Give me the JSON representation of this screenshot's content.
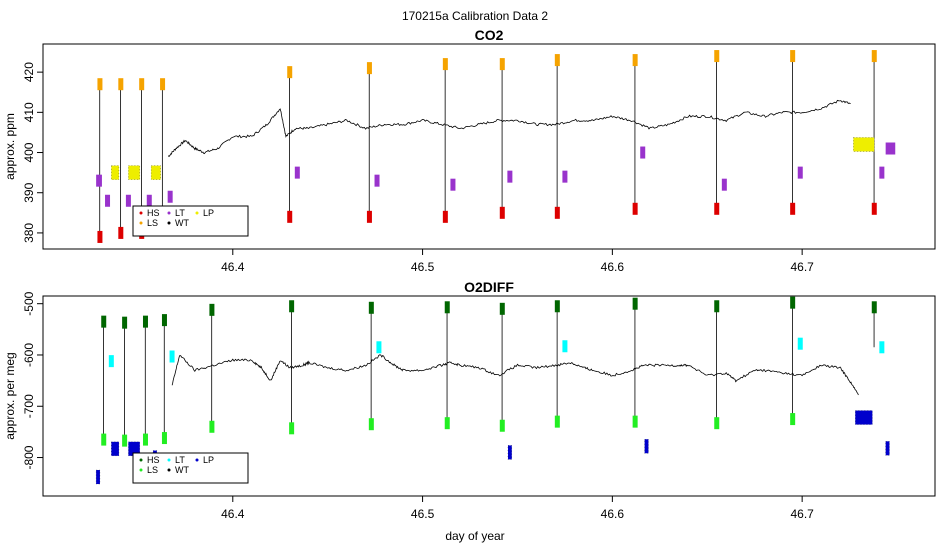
{
  "figure": {
    "title": "170215a   Calibration Data 2",
    "xlabel": "day of year"
  },
  "colors": {
    "HS": "#dd0000",
    "LS": "#f5a300",
    "LT": "#9933cc",
    "WT": "#000000",
    "LP": "#eeee00",
    "HS2": "#006600",
    "LS2": "#22ee22",
    "LT2": "#00ffff",
    "WT2": "#000000",
    "LP2": "#0000cc",
    "trace": "#000000"
  },
  "chart_data": [
    {
      "type": "line",
      "title": "CO2",
      "ylabel": "approx. ppm",
      "xlim": [
        46.3,
        46.77
      ],
      "ylim": [
        376,
        427
      ],
      "x_ticks": [
        "46.4",
        "46.5",
        "46.6",
        "46.7"
      ],
      "x_tick_values": [
        46.4,
        46.5,
        46.6,
        46.7
      ],
      "y_ticks": [
        "380",
        "390",
        "400",
        "410",
        "420"
      ],
      "y_tick_values": [
        380,
        390,
        400,
        410,
        420
      ],
      "legend": {
        "position": "bottom-left",
        "entries": [
          "HS",
          "LT",
          "LP",
          "LS",
          "WT"
        ]
      },
      "trace": [
        [
          46.366,
          399
        ],
        [
          46.37,
          401
        ],
        [
          46.375,
          403
        ],
        [
          46.38,
          401
        ],
        [
          46.385,
          400
        ],
        [
          46.392,
          401
        ],
        [
          46.4,
          404
        ],
        [
          46.41,
          404
        ],
        [
          46.418,
          407
        ],
        [
          46.425,
          411
        ],
        [
          46.428,
          404
        ],
        [
          46.433,
          406
        ],
        [
          46.44,
          406
        ],
        [
          46.45,
          407
        ],
        [
          46.46,
          408
        ],
        [
          46.47,
          406
        ],
        [
          46.48,
          407
        ],
        [
          46.49,
          407
        ],
        [
          46.5,
          408
        ],
        [
          46.51,
          407
        ],
        [
          46.52,
          406
        ],
        [
          46.53,
          407
        ],
        [
          46.54,
          408
        ],
        [
          46.55,
          408
        ],
        [
          46.56,
          407
        ],
        [
          46.57,
          407
        ],
        [
          46.58,
          408
        ],
        [
          46.59,
          408
        ],
        [
          46.6,
          409
        ],
        [
          46.61,
          408
        ],
        [
          46.62,
          406
        ],
        [
          46.63,
          407
        ],
        [
          46.64,
          409
        ],
        [
          46.65,
          409
        ],
        [
          46.66,
          408
        ],
        [
          46.67,
          410
        ],
        [
          46.68,
          409
        ],
        [
          46.69,
          410
        ],
        [
          46.7,
          410
        ],
        [
          46.71,
          411
        ],
        [
          46.72,
          413
        ],
        [
          46.726,
          412
        ]
      ],
      "cal_cycles": [
        {
          "x": 46.332,
          "HS": 379,
          "LS": 417,
          "LT": 388
        },
        {
          "x": 46.343,
          "HS": 380,
          "LS": 417,
          "LT": 388
        },
        {
          "x": 46.354,
          "HS": 380,
          "LS": 417,
          "LT": 388
        },
        {
          "x": 46.365,
          "HS": 381,
          "LS": 417,
          "LT": 389
        },
        {
          "x": 46.432,
          "HS": 384,
          "LS": 420,
          "LT": 395
        },
        {
          "x": 46.474,
          "HS": 384,
          "LS": 421,
          "LT": 393
        },
        {
          "x": 46.514,
          "HS": 384,
          "LS": 422,
          "LT": 392
        },
        {
          "x": 46.544,
          "HS": 385,
          "LS": 422,
          "LT": 394
        },
        {
          "x": 46.573,
          "HS": 385,
          "LS": 423,
          "LT": 394
        },
        {
          "x": 46.614,
          "HS": 386,
          "LS": 423,
          "LT": 400
        },
        {
          "x": 46.657,
          "HS": 386,
          "LS": 424,
          "LT": 392
        },
        {
          "x": 46.697,
          "HS": 386,
          "LS": 424,
          "LT": 395
        },
        {
          "x": 46.74,
          "HS": 386,
          "LS": 424,
          "LT": 395
        }
      ],
      "start_segment": [
        46.328,
        46.33,
        393
      ],
      "end_segment": [
        46.744,
        46.748,
        401
      ],
      "lp_segments": [
        {
          "x0": 46.336,
          "x1": 46.34,
          "y": 395
        },
        {
          "x0": 46.345,
          "x1": 46.351,
          "y": 395
        },
        {
          "x0": 46.357,
          "x1": 46.362,
          "y": 395
        },
        {
          "x0": 46.727,
          "x1": 46.738,
          "y": 402
        }
      ]
    },
    {
      "type": "line",
      "title": "O2DIFF",
      "ylabel": "approx. per meg",
      "xlim": [
        46.3,
        46.77
      ],
      "ylim": [
        -875,
        -485
      ],
      "x_ticks": [
        "46.4",
        "46.5",
        "46.6",
        "46.7"
      ],
      "x_tick_values": [
        46.4,
        46.5,
        46.6,
        46.7
      ],
      "y_ticks": [
        "-800",
        "-700",
        "-600",
        "-500"
      ],
      "y_tick_values": [
        -800,
        -700,
        -600,
        -500
      ],
      "legend": {
        "position": "bottom-left",
        "entries": [
          "HS",
          "LT",
          "LP",
          "LS",
          "WT"
        ]
      },
      "trace": [
        [
          46.368,
          -660
        ],
        [
          46.372,
          -600
        ],
        [
          46.38,
          -630
        ],
        [
          46.39,
          -620
        ],
        [
          46.4,
          -610
        ],
        [
          46.41,
          -610
        ],
        [
          46.415,
          -625
        ],
        [
          46.42,
          -650
        ],
        [
          46.425,
          -610
        ],
        [
          46.43,
          -625
        ],
        [
          46.437,
          -620
        ],
        [
          46.44,
          -615
        ],
        [
          46.45,
          -625
        ],
        [
          46.46,
          -630
        ],
        [
          46.47,
          -620
        ],
        [
          46.478,
          -600
        ],
        [
          46.485,
          -620
        ],
        [
          46.49,
          -630
        ],
        [
          46.5,
          -630
        ],
        [
          46.51,
          -620
        ],
        [
          46.515,
          -615
        ],
        [
          46.52,
          -620
        ],
        [
          46.53,
          -625
        ],
        [
          46.54,
          -640
        ],
        [
          46.55,
          -620
        ],
        [
          46.56,
          -625
        ],
        [
          46.57,
          -620
        ],
        [
          46.578,
          -615
        ],
        [
          46.585,
          -625
        ],
        [
          46.59,
          -630
        ],
        [
          46.6,
          -640
        ],
        [
          46.61,
          -630
        ],
        [
          46.617,
          -620
        ],
        [
          46.625,
          -620
        ],
        [
          46.635,
          -620
        ],
        [
          46.64,
          -620
        ],
        [
          46.65,
          -640
        ],
        [
          46.66,
          -635
        ],
        [
          46.665,
          -650
        ],
        [
          46.675,
          -630
        ],
        [
          46.68,
          -630
        ],
        [
          46.69,
          -635
        ],
        [
          46.7,
          -640
        ],
        [
          46.71,
          -620
        ],
        [
          46.72,
          -625
        ],
        [
          46.725,
          -650
        ],
        [
          46.73,
          -680
        ]
      ],
      "cal_cycles": [
        {
          "x": 46.334,
          "HS": -535,
          "LS": -765,
          "LT": -612
        },
        {
          "x": 46.345,
          "HS": -537,
          "LS": -767,
          "LT": null
        },
        {
          "x": 46.356,
          "HS": -535,
          "LS": -765,
          "LT": null
        },
        {
          "x": 46.366,
          "HS": -532,
          "LS": -762,
          "LT": -603
        },
        {
          "x": 46.391,
          "HS": -512,
          "LS": -740,
          "LT": null
        },
        {
          "x": 46.433,
          "HS": -505,
          "LS": -743,
          "LT": null
        },
        {
          "x": 46.475,
          "HS": -508,
          "LS": -735,
          "LT": -585
        },
        {
          "x": 46.515,
          "HS": -507,
          "LS": -733,
          "LT": null
        },
        {
          "x": 46.544,
          "HS": -510,
          "LS": -738,
          "LT": null
        },
        {
          "x": 46.573,
          "HS": -505,
          "LS": -730,
          "LT": -583
        },
        {
          "x": 46.614,
          "HS": -500,
          "LS": -730,
          "LT": null
        },
        {
          "x": 46.657,
          "HS": -505,
          "LS": -733,
          "LT": null
        },
        {
          "x": 46.697,
          "HS": -498,
          "LS": -725,
          "LT": -578
        },
        {
          "x": 46.74,
          "HS": -507,
          "LS": null,
          "LT": -585
        }
      ],
      "lp_segments": [
        {
          "x0": 46.328,
          "x1": 46.33,
          "y": -838
        },
        {
          "x0": 46.336,
          "x1": 46.34,
          "y": -783
        },
        {
          "x0": 46.345,
          "x1": 46.351,
          "y": -783
        },
        {
          "x0": 46.358,
          "x1": 46.36,
          "y": -800
        },
        {
          "x0": 46.545,
          "x1": 46.547,
          "y": -790
        },
        {
          "x0": 46.617,
          "x1": 46.619,
          "y": -778
        },
        {
          "x0": 46.728,
          "x1": 46.737,
          "y": -722
        },
        {
          "x0": 46.744,
          "x1": 46.746,
          "y": -782
        }
      ]
    }
  ]
}
